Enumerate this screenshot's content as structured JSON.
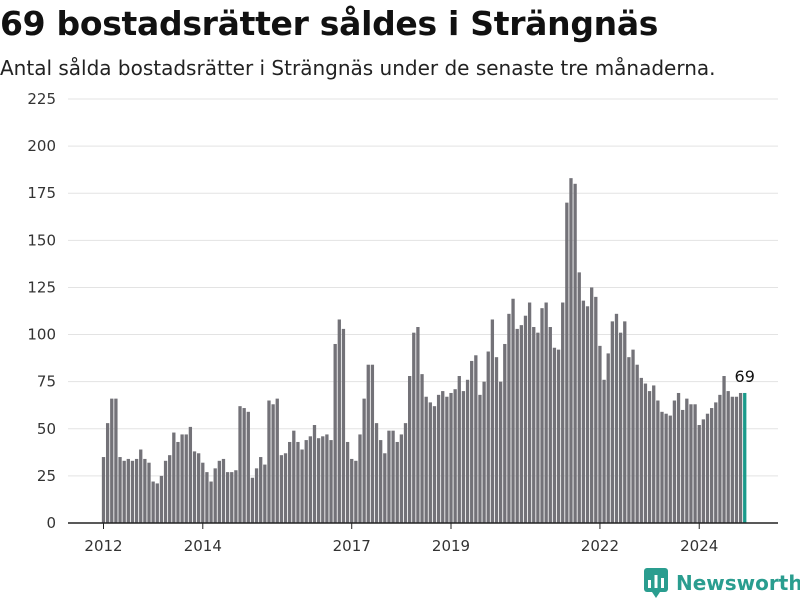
{
  "header": {
    "title": "69 bostadsrätter såldes i Strängnäs",
    "subtitle": "Antal sålda bostadsrätter i Strängnäs under de senaste tre månaderna."
  },
  "brand": {
    "name": "Newsworthy"
  },
  "colors": {
    "bar": "#737278",
    "highlight": "#1a9a8a",
    "grid": "#e3e3e3",
    "axis": "#222222"
  },
  "chart_data": {
    "type": "bar",
    "ylim": [
      0,
      225
    ],
    "yticks": [
      0,
      25,
      50,
      75,
      100,
      125,
      150,
      175,
      200,
      225
    ],
    "xticks": [
      {
        "label": "2012",
        "x": 0
      },
      {
        "label": "2014",
        "x": 24
      },
      {
        "label": "2017",
        "x": 60
      },
      {
        "label": "2019",
        "x": 84
      },
      {
        "label": "2022",
        "x": 120
      },
      {
        "label": "2024",
        "x": 144
      }
    ],
    "values": [
      35,
      53,
      66,
      66,
      35,
      33,
      34,
      33,
      34,
      39,
      34,
      32,
      22,
      21,
      25,
      33,
      36,
      48,
      43,
      47,
      47,
      51,
      38,
      37,
      32,
      27,
      22,
      29,
      33,
      34,
      27,
      27,
      28,
      62,
      61,
      59,
      24,
      29,
      35,
      31,
      65,
      63,
      66,
      36,
      37,
      43,
      49,
      43,
      39,
      44,
      46,
      52,
      45,
      46,
      47,
      44,
      95,
      108,
      103,
      43,
      34,
      33,
      47,
      66,
      84,
      84,
      53,
      44,
      37,
      49,
      49,
      43,
      47,
      53,
      78,
      101,
      104,
      79,
      67,
      64,
      62,
      68,
      70,
      67,
      69,
      71,
      78,
      70,
      76,
      86,
      89,
      68,
      75,
      91,
      108,
      88,
      75,
      95,
      111,
      119,
      103,
      105,
      110,
      117,
      104,
      101,
      114,
      117,
      104,
      93,
      92,
      117,
      170,
      183,
      180,
      133,
      118,
      115,
      125,
      120,
      94,
      76,
      90,
      107,
      111,
      101,
      107,
      88,
      92,
      84,
      77,
      74,
      70,
      73,
      65,
      59,
      58,
      57,
      65,
      69,
      60,
      66,
      63,
      63,
      52,
      55,
      58,
      61,
      64,
      68,
      78,
      70,
      67,
      67,
      69,
      69
    ],
    "highlight_index": 155,
    "annotation": "69"
  }
}
